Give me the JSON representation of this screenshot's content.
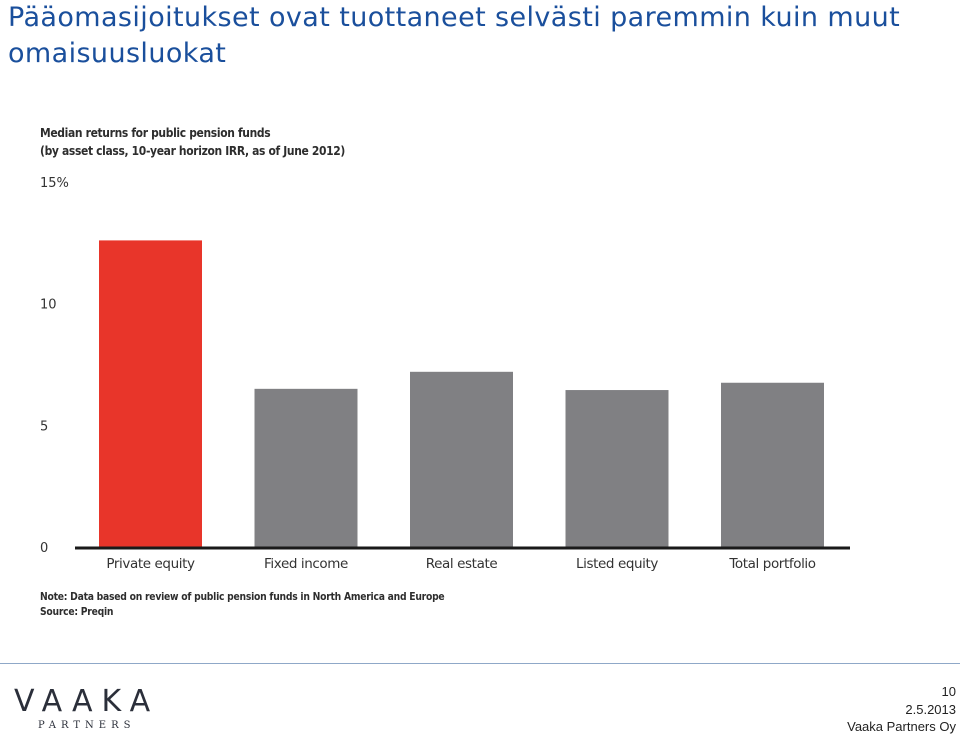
{
  "slide": {
    "title": "Pääomasijoitukset ovat tuottaneet selvästi paremmin kuin muut omaisuusluokat"
  },
  "chart_data": {
    "type": "bar",
    "title": "Median returns for public pension funds",
    "subtitle": "(by asset class, 10-year horizon IRR, as of June 2012)",
    "categories": [
      "Private equity",
      "Fixed income",
      "Real estate",
      "Listed equity",
      "Total portfolio"
    ],
    "values": [
      12.6,
      6.5,
      7.2,
      6.45,
      6.75
    ],
    "colors": [
      "#e8352a",
      "#808083",
      "#808083",
      "#808083",
      "#808083"
    ],
    "ylim": [
      0,
      15
    ],
    "yticks": [
      0,
      5,
      10,
      15
    ],
    "ytick_labels": [
      "0",
      "5",
      "10",
      "15%"
    ],
    "grid": false,
    "notes": [
      "Note: Data based on review of public pension funds in North America and Europe",
      "Source: Preqin"
    ]
  },
  "footer": {
    "logo_main": "VAAKA",
    "logo_sub": "PARTNERS",
    "page_number": "10",
    "date": "2.5.2013",
    "company": "Vaaka Partners Oy"
  }
}
